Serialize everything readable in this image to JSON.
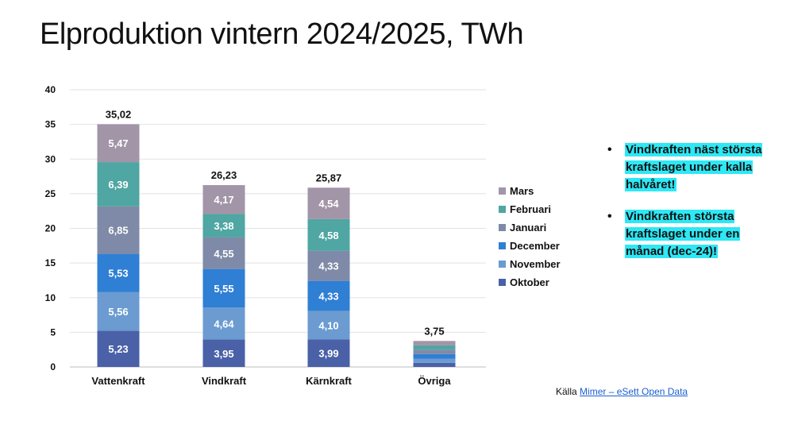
{
  "title": "Elproduktion vintern 2024/2025, TWh",
  "chart_data": {
    "type": "bar",
    "stacked": true,
    "categories": [
      "Vattenkraft",
      "Vindkraft",
      "Kärnkraft",
      "Övriga"
    ],
    "series": [
      {
        "name": "Oktober",
        "color": "#4a61a8",
        "values": [
          5.23,
          3.95,
          3.99,
          0.6
        ]
      },
      {
        "name": "November",
        "color": "#6b9bd0",
        "values": [
          5.56,
          4.64,
          4.1,
          0.6
        ]
      },
      {
        "name": "December",
        "color": "#2f7fd4",
        "values": [
          5.53,
          5.55,
          4.33,
          0.65
        ]
      },
      {
        "name": "Januari",
        "color": "#7f8aa8",
        "values": [
          6.85,
          4.55,
          4.33,
          0.65
        ]
      },
      {
        "name": "Februari",
        "color": "#4fa6a2",
        "values": [
          6.39,
          3.38,
          4.58,
          0.6
        ]
      },
      {
        "name": "Mars",
        "color": "#a295a8",
        "values": [
          5.47,
          4.17,
          4.54,
          0.65
        ]
      }
    ],
    "segment_labels": [
      [
        "5,23",
        "5,56",
        "5,53",
        "6,85",
        "6,39",
        "5,47"
      ],
      [
        "3,95",
        "4,64",
        "5,55",
        "4,55",
        "3,38",
        "4,17"
      ],
      [
        "3,99",
        "4,10",
        "4,33",
        "4,33",
        "4,58",
        "4,54"
      ],
      [
        "",
        "",
        "",
        "",
        "",
        ""
      ]
    ],
    "totals": [
      "35,02",
      "26,23",
      "25,87",
      "3,75"
    ],
    "ylim": [
      0,
      40
    ],
    "yticks": [
      0,
      5,
      10,
      15,
      20,
      25,
      30,
      35,
      40
    ],
    "grid": true,
    "legend_position": "right"
  },
  "legend_items": [
    "Mars",
    "Februari",
    "Januari",
    "December",
    "November",
    "Oktober"
  ],
  "legend_colors": [
    "#a295a8",
    "#4fa6a2",
    "#7f8aa8",
    "#2f7fd4",
    "#6b9bd0",
    "#4a61a8"
  ],
  "bullets": [
    {
      "text": "Vindkraften näst största kraftslaget under kalla halvåret!"
    },
    {
      "text": "Vindkraften största kraftslaget under en månad (dec-24)!"
    }
  ],
  "source": {
    "prefix": "Källa",
    "link": "Mimer – eSett Open Data"
  }
}
